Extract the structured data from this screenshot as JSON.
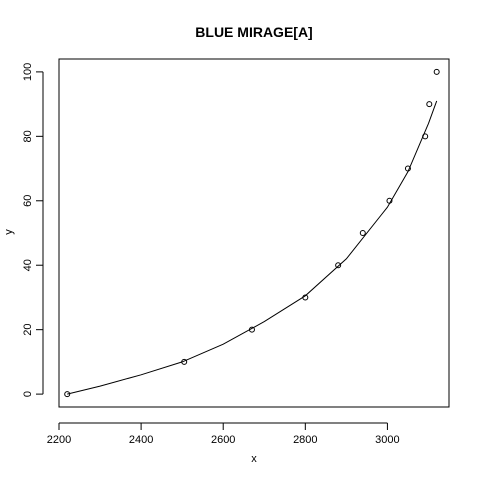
{
  "chart_data": {
    "type": "scatter",
    "title": "BLUE MIRAGE[A]",
    "xlabel": "x",
    "ylabel": "y",
    "xlim": [
      2200,
      3150
    ],
    "ylim": [
      -4,
      104
    ],
    "xticks": [
      2200,
      2400,
      2600,
      2800,
      3000
    ],
    "yticks": [
      0,
      20,
      40,
      60,
      80,
      100
    ],
    "grid": false,
    "points": [
      {
        "x": 2220,
        "y": 0
      },
      {
        "x": 2505,
        "y": 10
      },
      {
        "x": 2670,
        "y": 20
      },
      {
        "x": 2800,
        "y": 30
      },
      {
        "x": 2880,
        "y": 40
      },
      {
        "x": 2940,
        "y": 50
      },
      {
        "x": 3005,
        "y": 60
      },
      {
        "x": 3050,
        "y": 70
      },
      {
        "x": 3092,
        "y": 80
      },
      {
        "x": 3102,
        "y": 90
      },
      {
        "x": 3120,
        "y": 100
      }
    ],
    "fit_curve": [
      {
        "x": 2220,
        "y": 0
      },
      {
        "x": 2300,
        "y": 2.5
      },
      {
        "x": 2400,
        "y": 6
      },
      {
        "x": 2500,
        "y": 10
      },
      {
        "x": 2600,
        "y": 15.5
      },
      {
        "x": 2700,
        "y": 22.5
      },
      {
        "x": 2800,
        "y": 30.5
      },
      {
        "x": 2900,
        "y": 42
      },
      {
        "x": 3000,
        "y": 58
      },
      {
        "x": 3050,
        "y": 69
      },
      {
        "x": 3100,
        "y": 84
      },
      {
        "x": 3120,
        "y": 91
      }
    ]
  }
}
